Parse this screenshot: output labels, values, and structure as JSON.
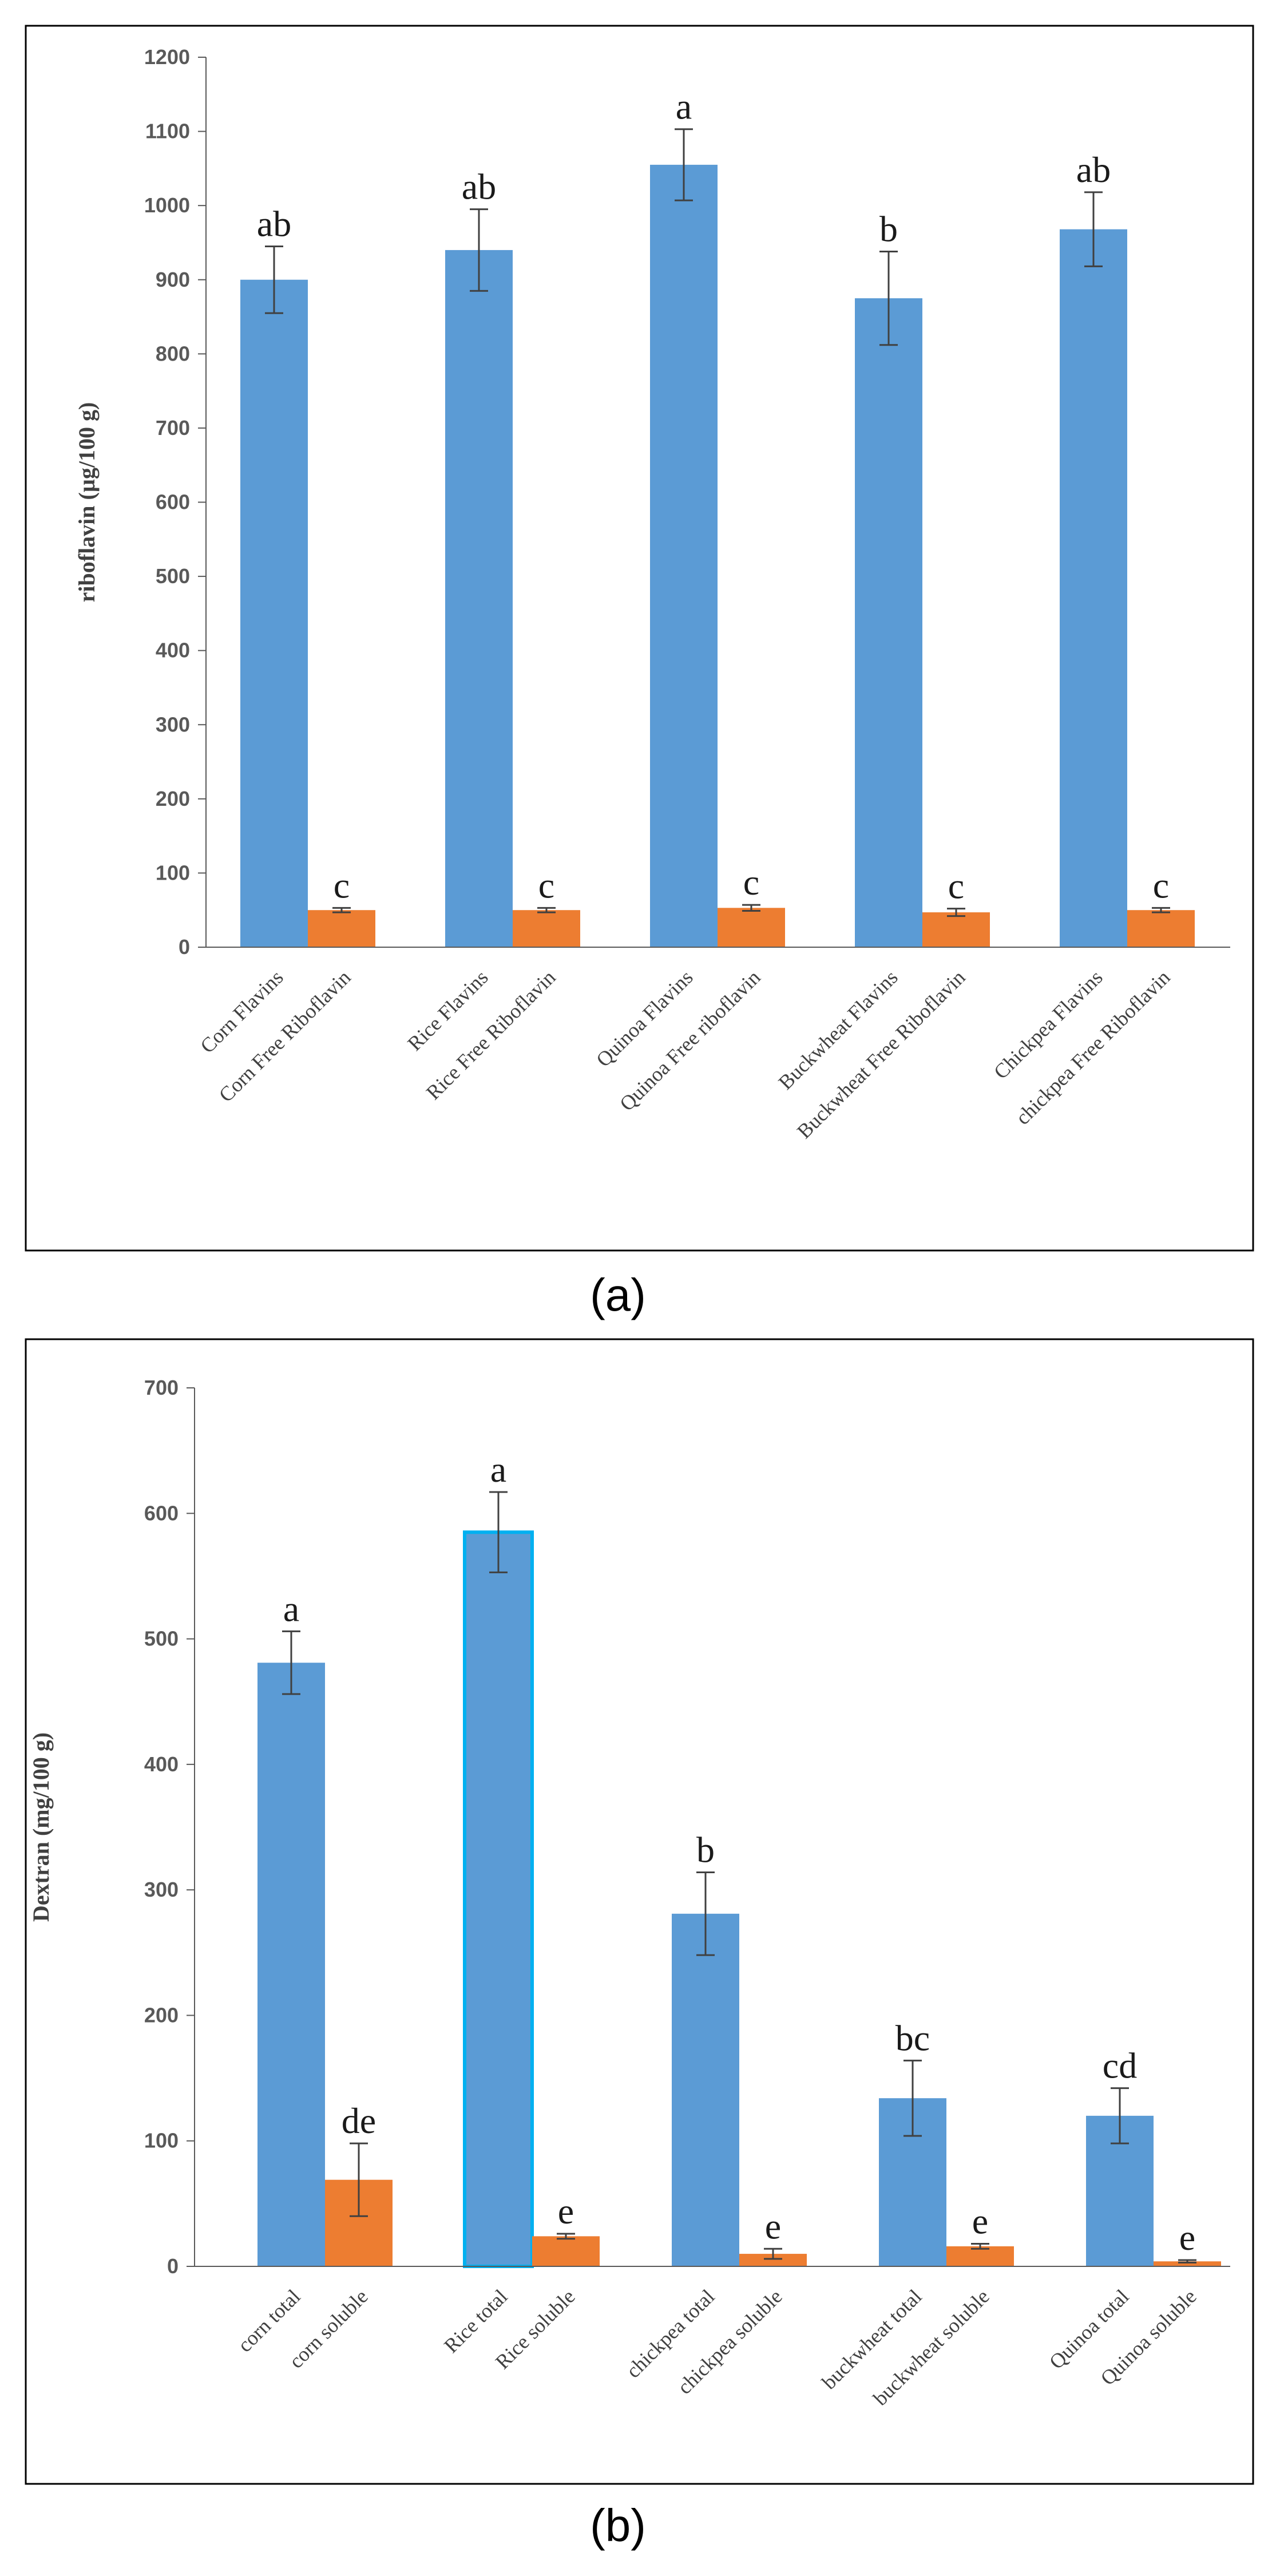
{
  "chart_data": [
    {
      "type": "bar",
      "panel_label": "(a)",
      "title": "",
      "xlabel": "",
      "ylabel": "riboflavin (µg/100 g)",
      "ylim": [
        0,
        1200
      ],
      "yticks": [
        0,
        100,
        200,
        300,
        400,
        500,
        600,
        700,
        800,
        900,
        1000,
        1100,
        1200
      ],
      "grid": false,
      "legend": "none",
      "colors": {
        "total": "#5b9bd5",
        "free": "#ed7d31",
        "error_bar": "#404040"
      },
      "groups": [
        {
          "bars": [
            {
              "label": "Corn Flavins",
              "series": "total",
              "value": 900,
              "error": 45,
              "significance": "ab"
            },
            {
              "label": "Corn Free Riboflavin",
              "series": "free",
              "value": 50,
              "error": 3,
              "significance": "c"
            }
          ]
        },
        {
          "bars": [
            {
              "label": "Rice  Flavins",
              "series": "total",
              "value": 940,
              "error": 55,
              "significance": "ab"
            },
            {
              "label": "Rice Free  Riboflavin",
              "series": "free",
              "value": 50,
              "error": 3,
              "significance": "c"
            }
          ]
        },
        {
          "bars": [
            {
              "label": "Quinoa Flavins",
              "series": "total",
              "value": 1055,
              "error": 48,
              "significance": "a"
            },
            {
              "label": "Quinoa Free riboflavin",
              "series": "free",
              "value": 53,
              "error": 4,
              "significance": "c"
            }
          ]
        },
        {
          "bars": [
            {
              "label": "Buckwheat Flavins",
              "series": "total",
              "value": 875,
              "error": 63,
              "significance": "b"
            },
            {
              "label": "Buckwheat Free Riboflavin",
              "series": "free",
              "value": 47,
              "error": 5,
              "significance": "c"
            }
          ]
        },
        {
          "bars": [
            {
              "label": "Chickpea Flavins",
              "series": "total",
              "value": 968,
              "error": 50,
              "significance": "ab"
            },
            {
              "label": "chickpea Free Riboflavin",
              "series": "free",
              "value": 50,
              "error": 3,
              "significance": "c"
            }
          ]
        }
      ]
    },
    {
      "type": "bar",
      "panel_label": "(b)",
      "title": "",
      "xlabel": "",
      "ylabel": "Dextran (mg/100 g)",
      "ylim": [
        0,
        700
      ],
      "yticks": [
        0,
        100,
        200,
        300,
        400,
        500,
        600,
        700
      ],
      "grid": false,
      "legend": "none",
      "colors": {
        "total": "#5b9bd5",
        "free": "#ed7d31",
        "error_bar": "#404040",
        "highlight_outline": "#00b0f0"
      },
      "groups": [
        {
          "bars": [
            {
              "label": "corn total",
              "series": "total",
              "value": 481,
              "error": 25,
              "significance": "a"
            },
            {
              "label": "corn soluble",
              "series": "free",
              "value": 69,
              "error": 29,
              "significance": "de"
            }
          ]
        },
        {
          "bars": [
            {
              "label": "Rice  total",
              "series": "total",
              "value": 585,
              "error": 32,
              "significance": "a",
              "highlighted": true
            },
            {
              "label": "Rice soluble",
              "series": "free",
              "value": 24,
              "error": 2,
              "significance": "e"
            }
          ]
        },
        {
          "bars": [
            {
              "label": "chickpea total",
              "series": "total",
              "value": 281,
              "error": 33,
              "significance": "b"
            },
            {
              "label": "chickpea soluble",
              "series": "free",
              "value": 10,
              "error": 4,
              "significance": "e"
            }
          ]
        },
        {
          "bars": [
            {
              "label": "buckwheat total",
              "series": "total",
              "value": 134,
              "error": 30,
              "significance": "bc"
            },
            {
              "label": "buckwheat  soluble",
              "series": "free",
              "value": 16,
              "error": 2,
              "significance": "e"
            }
          ]
        },
        {
          "bars": [
            {
              "label": "Quinoa total",
              "series": "total",
              "value": 120,
              "error": 22,
              "significance": "cd"
            },
            {
              "label": "Quinoa soluble",
              "series": "free",
              "value": 4,
              "error": 1,
              "significance": "e"
            }
          ]
        }
      ]
    }
  ]
}
